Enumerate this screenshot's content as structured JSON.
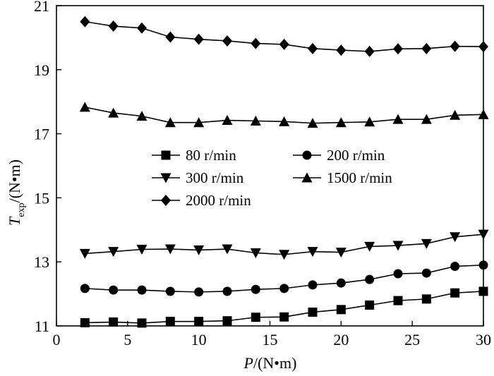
{
  "chart_data": {
    "type": "line",
    "xlabel": {
      "var": "P",
      "unit": "/(N•m)"
    },
    "ylabel": {
      "var": "T",
      "sub": "exp",
      "unit": "/(N•m)"
    },
    "xlim": [
      0,
      30
    ],
    "ylim": [
      11,
      21
    ],
    "xticks": [
      0,
      5,
      10,
      15,
      20,
      25,
      30
    ],
    "yticks": [
      11,
      13,
      15,
      17,
      19,
      21
    ],
    "grid": false,
    "legend_position": "center-left",
    "x": [
      2,
      4,
      6,
      8,
      10,
      12,
      14,
      16,
      18,
      20,
      22,
      24,
      26,
      28,
      30
    ],
    "series": [
      {
        "name": "80 r/min",
        "marker": "square",
        "values": [
          11.1,
          11.12,
          11.09,
          11.14,
          11.14,
          11.16,
          11.27,
          11.28,
          11.43,
          11.51,
          11.65,
          11.79,
          11.84,
          12.03,
          12.08
        ]
      },
      {
        "name": "200 r/min",
        "marker": "circle",
        "values": [
          12.17,
          12.12,
          12.12,
          12.08,
          12.06,
          12.08,
          12.14,
          12.17,
          12.28,
          12.34,
          12.45,
          12.63,
          12.65,
          12.86,
          12.9
        ]
      },
      {
        "name": "300 r/min",
        "marker": "triangle-down",
        "values": [
          13.26,
          13.32,
          13.39,
          13.4,
          13.37,
          13.4,
          13.28,
          13.23,
          13.32,
          13.3,
          13.48,
          13.51,
          13.57,
          13.78,
          13.86
        ]
      },
      {
        "name": "1500 r/min",
        "marker": "triangle-up",
        "values": [
          17.83,
          17.65,
          17.55,
          17.35,
          17.35,
          17.42,
          17.4,
          17.38,
          17.33,
          17.35,
          17.37,
          17.45,
          17.45,
          17.58,
          17.6
        ]
      },
      {
        "name": "2000 r/min",
        "marker": "diamond",
        "values": [
          20.5,
          20.36,
          20.3,
          20.02,
          19.95,
          19.9,
          19.82,
          19.79,
          19.66,
          19.61,
          19.57,
          19.65,
          19.66,
          19.73,
          19.72
        ]
      }
    ]
  }
}
